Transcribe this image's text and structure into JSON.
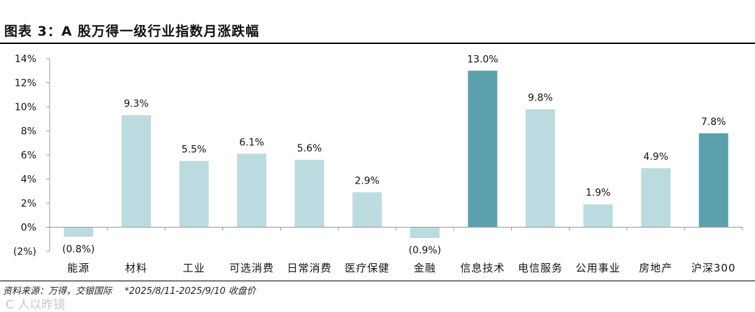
{
  "title": "图表 3：A 股万得一级行业指数月涨跌幅",
  "footer": {
    "source": "资料来源：万得，交银国际",
    "note": "*2025/8/11-2025/9/10 收盘价"
  },
  "watermark": "C 人以昨镜",
  "colors": {
    "light": "#bcdbe0",
    "dark": "#5ba1ad",
    "axis": "#999999"
  },
  "chart_data": {
    "type": "bar",
    "categories": [
      "能源",
      "材料",
      "工业",
      "可选消费",
      "日常消费",
      "医疗保健",
      "金融",
      "信息技术",
      "电信服务",
      "公用事业",
      "房地产",
      "沪深300"
    ],
    "values": [
      -0.8,
      9.3,
      5.5,
      6.1,
      5.6,
      2.9,
      -0.9,
      13.0,
      9.8,
      1.9,
      4.9,
      7.8
    ],
    "labels": [
      "(0.8%)",
      "9.3%",
      "5.5%",
      "6.1%",
      "5.6%",
      "2.9%",
      "(0.9%)",
      "13.0%",
      "9.8%",
      "1.9%",
      "4.9%",
      "7.8%"
    ],
    "highlight": [
      false,
      false,
      false,
      false,
      false,
      false,
      false,
      true,
      false,
      false,
      false,
      true
    ],
    "yticks": [
      -2,
      0,
      2,
      4,
      6,
      8,
      10,
      12,
      14
    ],
    "ytick_labels": [
      "(2%)",
      "0%",
      "2%",
      "4%",
      "6%",
      "8%",
      "10%",
      "12%",
      "14%"
    ],
    "ylim": [
      -2,
      14
    ],
    "grid": false,
    "legend": "none"
  }
}
